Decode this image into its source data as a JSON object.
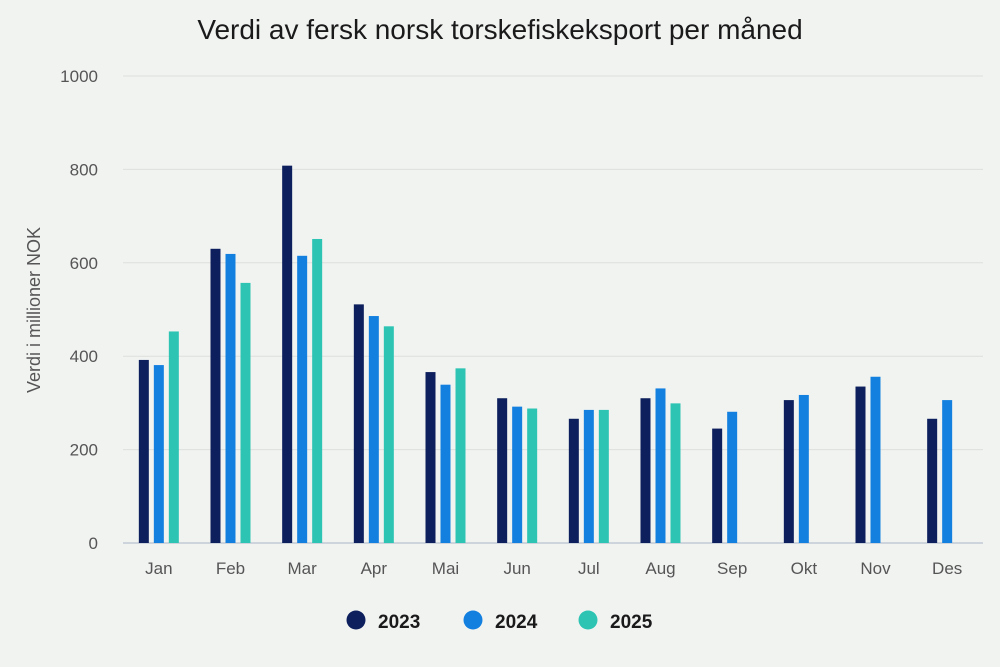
{
  "chart_data": {
    "type": "bar",
    "title": "Verdi av fersk norsk torskefiskeksport per måned",
    "xlabel": "",
    "ylabel": "Verdi i millioner NOK",
    "ylim": [
      0,
      1000
    ],
    "yticks": [
      0,
      200,
      400,
      600,
      800,
      1000
    ],
    "grid": true,
    "legend_position": "bottom",
    "categories": [
      "Jan",
      "Feb",
      "Mar",
      "Apr",
      "Mai",
      "Jun",
      "Jul",
      "Aug",
      "Sep",
      "Okt",
      "Nov",
      "Des"
    ],
    "series": [
      {
        "name": "2023",
        "color": "#0d1f5c",
        "values": [
          392,
          630,
          808,
          511,
          366,
          310,
          266,
          310,
          245,
          306,
          335,
          266
        ]
      },
      {
        "name": "2024",
        "color": "#1380e0",
        "values": [
          381,
          619,
          615,
          486,
          339,
          292,
          285,
          331,
          281,
          317,
          356,
          306
        ]
      },
      {
        "name": "2025",
        "color": "#2ec4b4",
        "values": [
          453,
          557,
          651,
          464,
          374,
          288,
          285,
          299,
          null,
          null,
          null,
          null
        ]
      }
    ]
  }
}
